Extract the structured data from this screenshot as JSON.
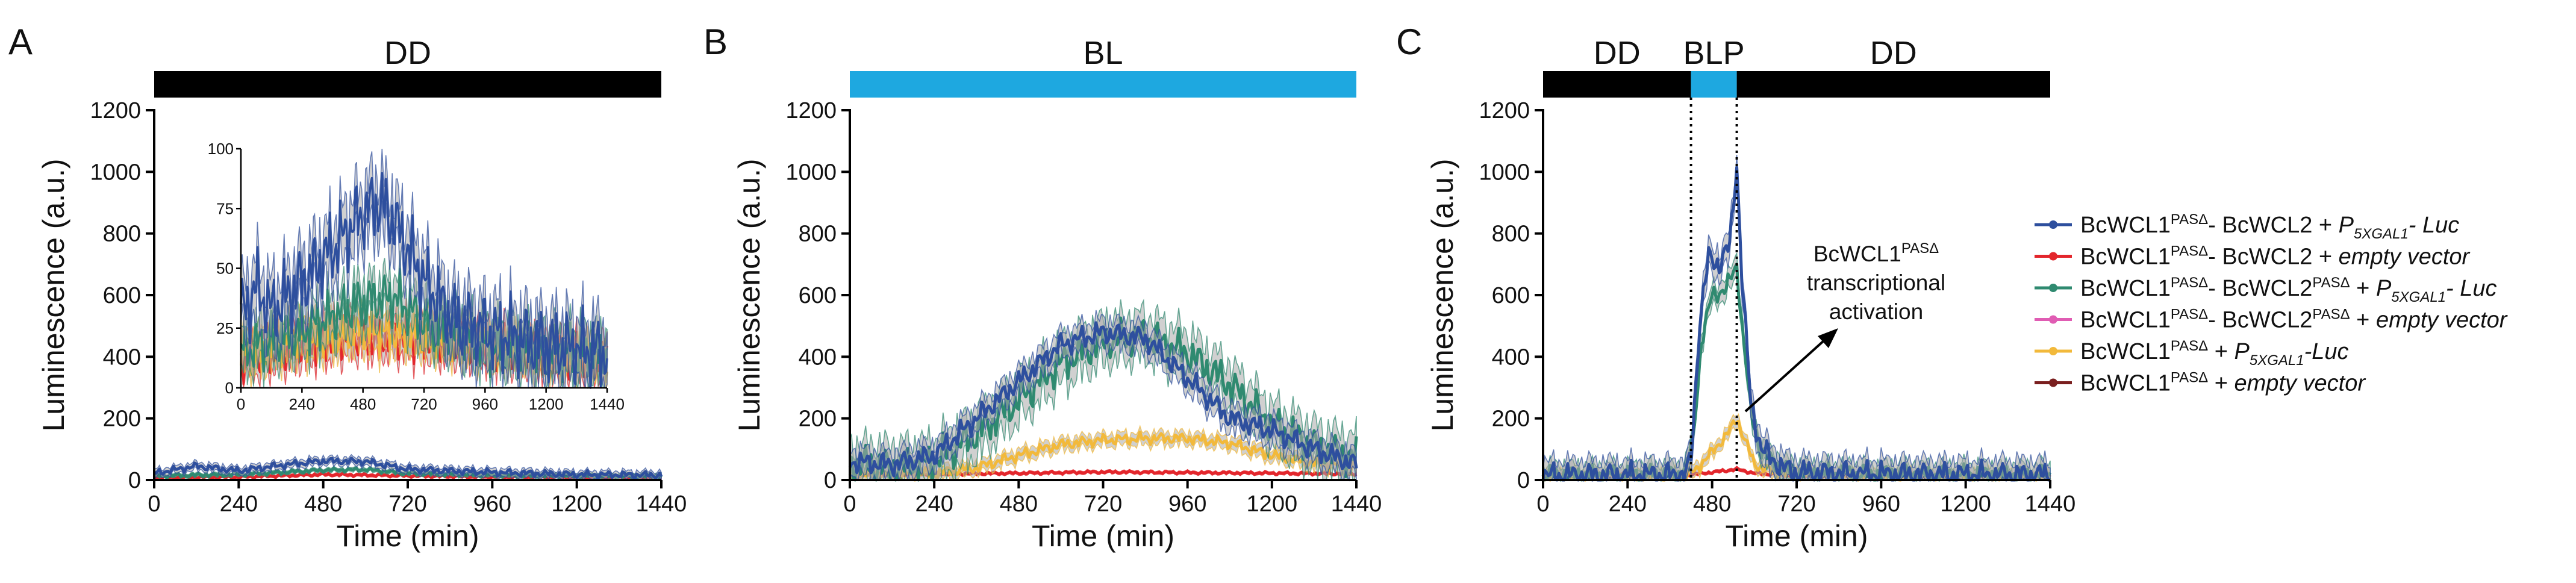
{
  "colors": {
    "wt_luc": "#2e4f9e",
    "wt_empty": "#e3262c",
    "pas_luc": "#2f8a70",
    "pas_empty": "#e05cb3",
    "wcl1_luc": "#f2b93b",
    "wcl1_empty": "#7a1f1f",
    "dark_bar": "#000000",
    "light_bar": "#1ea8e0",
    "band": "#aaaaaa"
  },
  "legend": [
    {
      "key": "wt_luc",
      "p1": "BcWCL1",
      "s1": "PASΔ",
      "p2": "- BcWCL2 + ",
      "i1": "P",
      "is1": "5XGAL1",
      "i2": "- Luc"
    },
    {
      "key": "wt_empty",
      "p1": "BcWCL1",
      "s1": "PASΔ",
      "p2": "- BcWCL2 + ",
      "i1": "empty vector"
    },
    {
      "key": "pas_luc",
      "p1": "BcWCL1",
      "s1": "PASΔ",
      "p2": "- BcWCL2",
      "s2": "PASΔ",
      "p3": " + ",
      "i1": "P",
      "is1": "5XGAL1",
      "i2": "- Luc"
    },
    {
      "key": "pas_empty",
      "p1": "BcWCL1",
      "s1": "PASΔ",
      "p2": "- BcWCL2",
      "s2": "PASΔ",
      "p3": " + ",
      "i1": "empty vector"
    },
    {
      "key": "wcl1_luc",
      "p1": "BcWCL1",
      "s1": "PASΔ",
      "p2": " + ",
      "i1": "P",
      "is1": "5XGAL1",
      "i2": "-Luc"
    },
    {
      "key": "wcl1_empty",
      "p1": "BcWCL1",
      "s1": "PASΔ",
      "p2": " + ",
      "i1": "empty vector"
    }
  ],
  "annotation": {
    "line1_main": "BcWCL1",
    "line1_sup": "PASΔ",
    "line2": "transcriptional",
    "line3": "activation"
  },
  "chart_data": [
    {
      "id": "A",
      "panel_label": "A",
      "type": "line",
      "xlabel": "Time (min)",
      "ylabel": "Luminescence (a.u.)",
      "xlim": [
        0,
        1440
      ],
      "ylim": [
        0,
        1200
      ],
      "xticks": [
        0,
        240,
        480,
        720,
        960,
        1200,
        1440
      ],
      "yticks": [
        0,
        200,
        400,
        600,
        800,
        1000,
        1200
      ],
      "condition_bar": [
        {
          "label": "DD",
          "from": 0,
          "to": 1440,
          "kind": "dark"
        }
      ],
      "series": [
        {
          "key": "wt_empty",
          "name": "BcWCL1PASΔ- BcWCL2 + empty vector",
          "points": [
            [
              0,
              8
            ],
            [
              240,
              10
            ],
            [
              480,
              18
            ],
            [
              720,
              14
            ],
            [
              960,
              10
            ],
            [
              1200,
              9
            ],
            [
              1440,
              8
            ]
          ],
          "band": 6
        },
        {
          "key": "pas_luc",
          "name": "BcWCL1PASΔ- BcWCL2PASΔ + P5XGAL1- Luc",
          "points": [
            [
              0,
              14
            ],
            [
              240,
              18
            ],
            [
              480,
              32
            ],
            [
              600,
              34
            ],
            [
              720,
              22
            ],
            [
              960,
              16
            ],
            [
              1200,
              14
            ],
            [
              1440,
              13
            ]
          ],
          "band": 8
        },
        {
          "key": "wt_luc",
          "name": "BcWCL1PASΔ- BcWCL2 + P5XGAL1- Luc",
          "points": [
            [
              0,
              22
            ],
            [
              120,
              45
            ],
            [
              240,
              30
            ],
            [
              360,
              48
            ],
            [
              480,
              62
            ],
            [
              600,
              60
            ],
            [
              720,
              35
            ],
            [
              960,
              25
            ],
            [
              1200,
              18
            ],
            [
              1440,
              16
            ]
          ],
          "band": 15
        }
      ],
      "inset": {
        "xlim": [
          0,
          1440
        ],
        "ylim": [
          0,
          100
        ],
        "xticks": [
          0,
          240,
          480,
          720,
          960,
          1200,
          1440
        ],
        "yticks": [
          0,
          25,
          50,
          75,
          100
        ],
        "series": [
          {
            "key": "wt_empty",
            "points": [
              [
                0,
                12
              ],
              [
                240,
                18
              ],
              [
                480,
                22
              ],
              [
                720,
                20
              ],
              [
                960,
                18
              ],
              [
                1200,
                14
              ],
              [
                1440,
                12
              ]
            ],
            "band": 8
          },
          {
            "key": "wcl1_luc",
            "points": [
              [
                0,
                14
              ],
              [
                240,
                20
              ],
              [
                480,
                24
              ],
              [
                720,
                22
              ],
              [
                960,
                18
              ],
              [
                1200,
                14
              ],
              [
                1440,
                12
              ]
            ],
            "band": 8
          },
          {
            "key": "pas_luc",
            "points": [
              [
                0,
                16
              ],
              [
                240,
                24
              ],
              [
                480,
                36
              ],
              [
                600,
                38
              ],
              [
                720,
                28
              ],
              [
                960,
                18
              ],
              [
                1200,
                16
              ],
              [
                1440,
                14
              ]
            ],
            "band": 10
          },
          {
            "key": "wt_luc",
            "points": [
              [
                0,
                30
              ],
              [
                60,
                42
              ],
              [
                120,
                32
              ],
              [
                240,
                44
              ],
              [
                360,
                58
              ],
              [
                480,
                73
              ],
              [
                540,
                78
              ],
              [
                600,
                70
              ],
              [
                720,
                45
              ],
              [
                840,
                28
              ],
              [
                960,
                24
              ],
              [
                1200,
                18
              ],
              [
                1440,
                15
              ]
            ],
            "band": 14
          }
        ]
      }
    },
    {
      "id": "B",
      "panel_label": "B",
      "type": "line",
      "xlabel": "Time (min)",
      "ylabel": "Luminescence (a.u.)",
      "xlim": [
        0,
        1440
      ],
      "ylim": [
        0,
        1200
      ],
      "xticks": [
        0,
        240,
        480,
        720,
        960,
        1200,
        1440
      ],
      "yticks": [
        0,
        200,
        400,
        600,
        800,
        1000,
        1200
      ],
      "condition_bar": [
        {
          "label": "BL",
          "from": 0,
          "to": 1440,
          "kind": "light"
        }
      ],
      "series": [
        {
          "key": "wt_empty",
          "name": "BcWCL1PASΔ- BcWCL2 + empty vector",
          "points": [
            [
              0,
              18
            ],
            [
              240,
              20
            ],
            [
              480,
              22
            ],
            [
              720,
              26
            ],
            [
              960,
              24
            ],
            [
              1200,
              22
            ],
            [
              1440,
              20
            ]
          ],
          "band": 6
        },
        {
          "key": "wcl1_luc",
          "name": "BcWCL1PASΔ + P5XGAL1-Luc",
          "points": [
            [
              0,
              18
            ],
            [
              240,
              22
            ],
            [
              360,
              40
            ],
            [
              480,
              80
            ],
            [
              600,
              115
            ],
            [
              720,
              130
            ],
            [
              840,
              135
            ],
            [
              960,
              135
            ],
            [
              1080,
              120
            ],
            [
              1200,
              80
            ],
            [
              1320,
              55
            ],
            [
              1440,
              45
            ]
          ],
          "band": 25
        },
        {
          "key": "pas_luc",
          "name": "BcWCL1PASΔ- BcWCL2PASΔ + P5XGAL1- Luc",
          "points": [
            [
              0,
              50
            ],
            [
              120,
              45
            ],
            [
              240,
              60
            ],
            [
              360,
              150
            ],
            [
              480,
              260
            ],
            [
              600,
              380
            ],
            [
              720,
              450
            ],
            [
              840,
              470
            ],
            [
              960,
              410
            ],
            [
              1080,
              310
            ],
            [
              1200,
              180
            ],
            [
              1320,
              110
            ],
            [
              1440,
              70
            ]
          ],
          "band": 85
        },
        {
          "key": "wt_luc",
          "name": "BcWCL1PASΔ- BcWCL2 + P5XGAL1- Luc",
          "points": [
            [
              0,
              60
            ],
            [
              60,
              55
            ],
            [
              120,
              50
            ],
            [
              240,
              80
            ],
            [
              360,
              200
            ],
            [
              480,
              320
            ],
            [
              600,
              440
            ],
            [
              720,
              480
            ],
            [
              840,
              460
            ],
            [
              960,
              330
            ],
            [
              1080,
              200
            ],
            [
              1200,
              160
            ],
            [
              1320,
              100
            ],
            [
              1440,
              50
            ]
          ],
          "band": 50
        }
      ]
    },
    {
      "id": "C",
      "panel_label": "C",
      "type": "line",
      "xlabel": "Time (min)",
      "ylabel": "Luminescence (a.u.)",
      "xlim": [
        0,
        1440
      ],
      "ylim": [
        0,
        1200
      ],
      "xticks": [
        0,
        240,
        480,
        720,
        960,
        1200,
        1440
      ],
      "yticks": [
        0,
        200,
        400,
        600,
        800,
        1000,
        1200
      ],
      "condition_bar": [
        {
          "label": "DD",
          "from": 0,
          "to": 420,
          "kind": "dark"
        },
        {
          "label": "BLP",
          "from": 420,
          "to": 550,
          "kind": "light"
        },
        {
          "label": "DD",
          "from": 550,
          "to": 1440,
          "kind": "dark"
        }
      ],
      "vlines": [
        420,
        550
      ],
      "series": [
        {
          "key": "wt_empty",
          "name": "BcWCL1PASΔ- BcWCL2 + empty vector",
          "points": [
            [
              0,
              15
            ],
            [
              300,
              16
            ],
            [
              420,
              18
            ],
            [
              480,
              25
            ],
            [
              550,
              35
            ],
            [
              600,
              22
            ],
            [
              720,
              15
            ],
            [
              960,
              14
            ],
            [
              1440,
              12
            ]
          ],
          "band": 6
        },
        {
          "key": "wcl1_luc",
          "name": "BcWCL1PASΔ + P5XGAL1-Luc",
          "points": [
            [
              0,
              10
            ],
            [
              400,
              12
            ],
            [
              430,
              30
            ],
            [
              480,
              90
            ],
            [
              530,
              160
            ],
            [
              550,
              200
            ],
            [
              570,
              140
            ],
            [
              600,
              50
            ],
            [
              660,
              25
            ],
            [
              720,
              15
            ],
            [
              960,
              12
            ],
            [
              1440,
              10
            ]
          ],
          "band": 25
        },
        {
          "key": "pas_luc",
          "name": "BcWCL1PASΔ- BcWCL2PASΔ + P5XGAL1- Luc",
          "points": [
            [
              0,
              18
            ],
            [
              400,
              20
            ],
            [
              425,
              120
            ],
            [
              450,
              450
            ],
            [
              480,
              600
            ],
            [
              520,
              620
            ],
            [
              550,
              700
            ],
            [
              565,
              500
            ],
            [
              590,
              220
            ],
            [
              620,
              90
            ],
            [
              680,
              40
            ],
            [
              720,
              25
            ],
            [
              960,
              20
            ],
            [
              1440,
              18
            ]
          ],
          "band": 40
        },
        {
          "key": "wt_luc",
          "name": "BcWCL1PASΔ- BcWCL2 + P5XGAL1- Luc",
          "points": [
            [
              0,
              15
            ],
            [
              400,
              18
            ],
            [
              420,
              60
            ],
            [
              445,
              520
            ],
            [
              470,
              720
            ],
            [
              500,
              700
            ],
            [
              530,
              760
            ],
            [
              550,
              1030
            ],
            [
              565,
              650
            ],
            [
              590,
              250
            ],
            [
              620,
              100
            ],
            [
              680,
              40
            ],
            [
              720,
              25
            ],
            [
              960,
              20
            ],
            [
              1440,
              16
            ]
          ],
          "band": 55
        }
      ]
    }
  ]
}
